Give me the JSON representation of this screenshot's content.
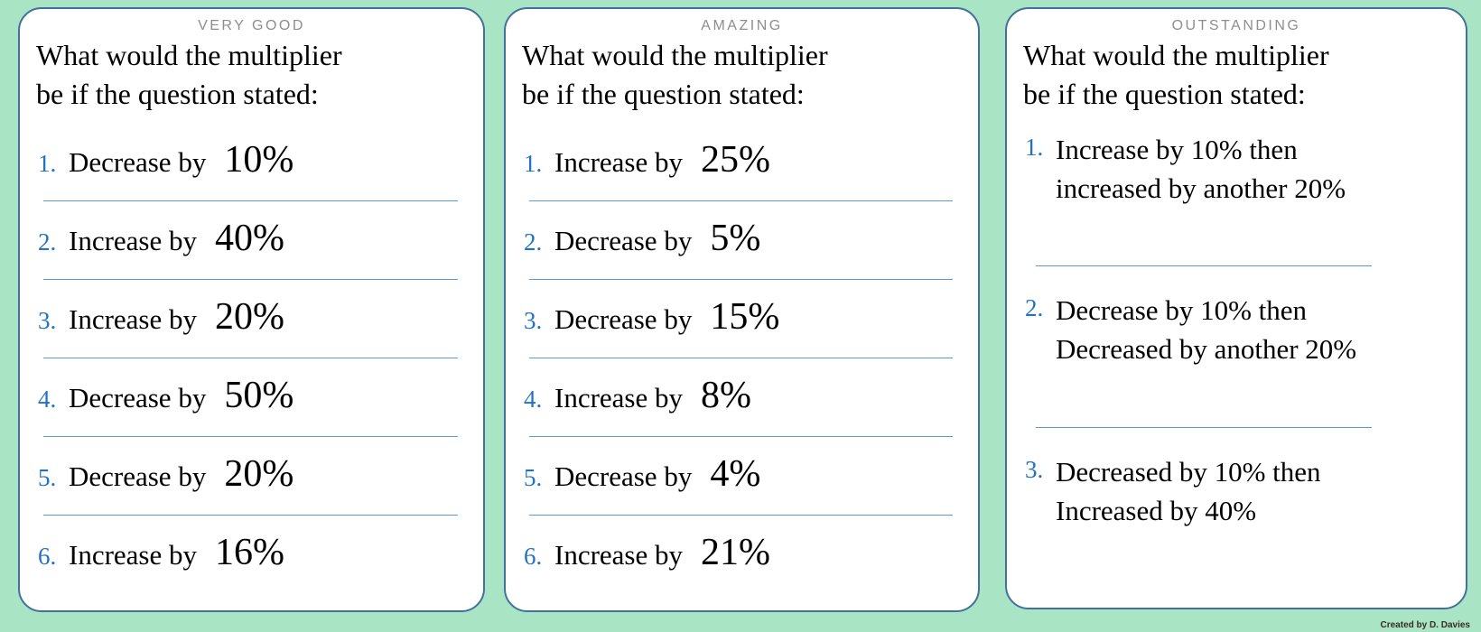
{
  "page": {
    "credit": "Created by D. Davies"
  },
  "colors": {
    "background": "#a9e4c5",
    "card_border": "#41719c",
    "separator": "#5b9bd5",
    "number_blue": "#2173c2",
    "title_gray": "#8e8e8e"
  },
  "cards": [
    {
      "title": "VERY GOOD",
      "question_line1": "What would the multiplier",
      "question_line2": "be if the question stated:",
      "items": [
        {
          "num": "1.",
          "label": "Decrease by",
          "value": "10%"
        },
        {
          "num": "2.",
          "label": "Increase by",
          "value": "40%"
        },
        {
          "num": "3.",
          "label": "Increase by",
          "value": "20%"
        },
        {
          "num": "4.",
          "label": "Decrease by",
          "value": "50%"
        },
        {
          "num": "5.",
          "label": "Decrease by",
          "value": "20%"
        },
        {
          "num": "6.",
          "label": "Increase by",
          "value": "16%"
        }
      ]
    },
    {
      "title": "AMAZING",
      "question_line1": "What would the multiplier",
      "question_line2": "be if the question stated:",
      "items": [
        {
          "num": "1.",
          "label": "Increase by",
          "value": "25%"
        },
        {
          "num": "2.",
          "label": "Decrease by",
          "value": "5%"
        },
        {
          "num": "3.",
          "label": "Decrease by",
          "value": "15%"
        },
        {
          "num": "4.",
          "label": "Increase by",
          "value": "8%"
        },
        {
          "num": "5.",
          "label": "Decrease by",
          "value": "4%"
        },
        {
          "num": "6.",
          "label": "Increase by",
          "value": "21%"
        }
      ]
    },
    {
      "title": "OUTSTANDING",
      "question_line1": "What would the multiplier",
      "question_line2": "be if the question stated:",
      "items": [
        {
          "num": "1.",
          "line1": "Increase by 10% then",
          "line2": "increased by another 20%"
        },
        {
          "num": "2.",
          "line1": "Decrease by 10% then",
          "line2": "Decreased by another 20%"
        },
        {
          "num": "3.",
          "line1": "Decreased by 10% then",
          "line2": "Increased by 40%"
        }
      ]
    }
  ]
}
